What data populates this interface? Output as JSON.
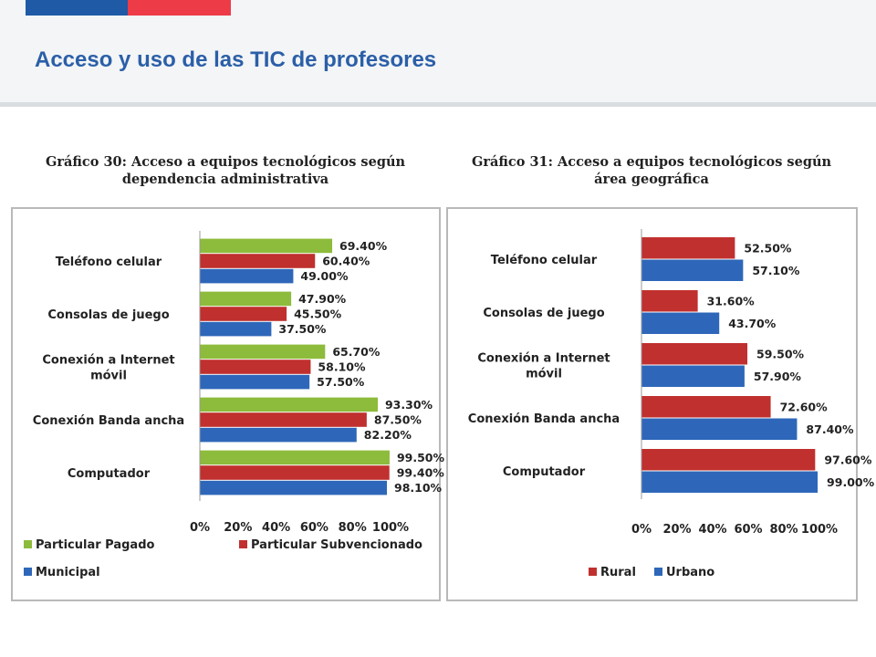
{
  "page": {
    "title": "Acceso y uso de las TIC de profesores"
  },
  "chart_data": [
    {
      "type": "bar",
      "orientation": "horizontal",
      "title_line1": "Gráfico 30: Acceso a equipos tecnológicos según",
      "title_line2": "dependencia administrativa",
      "categories": [
        [
          "Teléfono celular"
        ],
        [
          "Consolas de juego"
        ],
        [
          "Conexión a Internet",
          "móvil"
        ],
        [
          "Conexión Banda ancha"
        ],
        [
          "Computador"
        ]
      ],
      "series": [
        {
          "name": "Particular Pagado",
          "color": "#8dbb3b",
          "values": [
            69.4,
            47.9,
            65.7,
            93.3,
            99.5
          ],
          "labels": [
            "69.40%",
            "47.90%",
            "65.70%",
            "93.30%",
            "99.50%"
          ]
        },
        {
          "name": "Particular Subvencionado",
          "color": "#c0302e",
          "values": [
            60.4,
            45.5,
            58.1,
            87.5,
            99.4
          ],
          "labels": [
            "60.40%",
            "45.50%",
            "58.10%",
            "87.50%",
            "99.40%"
          ]
        },
        {
          "name": "Municipal",
          "color": "#2e67b9",
          "values": [
            49.0,
            37.5,
            57.5,
            82.2,
            98.1
          ],
          "labels": [
            "49.00%",
            "37.50%",
            "57.50%",
            "82.20%",
            "98.10%"
          ]
        }
      ],
      "xlim": [
        0,
        100
      ],
      "ticks": [
        "0%",
        "20%",
        "40%",
        "60%",
        "80%",
        "100%"
      ],
      "legend_position": "bottom",
      "grid": false
    },
    {
      "type": "bar",
      "orientation": "horizontal",
      "title_line1": "Gráfico 31: Acceso a equipos tecnológicos según",
      "title_line2": "área geográfica",
      "categories": [
        [
          "Teléfono celular"
        ],
        [
          "Consolas de juego"
        ],
        [
          "Conexión a Internet",
          "móvil"
        ],
        [
          "Conexión Banda ancha"
        ],
        [
          "Computador"
        ]
      ],
      "series": [
        {
          "name": "Rural",
          "color": "#c0302e",
          "values": [
            52.5,
            31.6,
            59.5,
            72.6,
            97.6
          ],
          "labels": [
            "52.50%",
            "31.60%",
            "59.50%",
            "72.60%",
            "97.60%"
          ]
        },
        {
          "name": "Urbano",
          "color": "#2e67b9",
          "values": [
            57.1,
            43.7,
            57.9,
            87.4,
            99.0
          ],
          "labels": [
            "57.10%",
            "43.70%",
            "57.90%",
            "87.40%",
            "99.00%"
          ]
        }
      ],
      "xlim": [
        0,
        100
      ],
      "ticks": [
        "0%",
        "20%",
        "40%",
        "60%",
        "80%",
        "100%"
      ],
      "legend_position": "bottom",
      "grid": false
    }
  ]
}
